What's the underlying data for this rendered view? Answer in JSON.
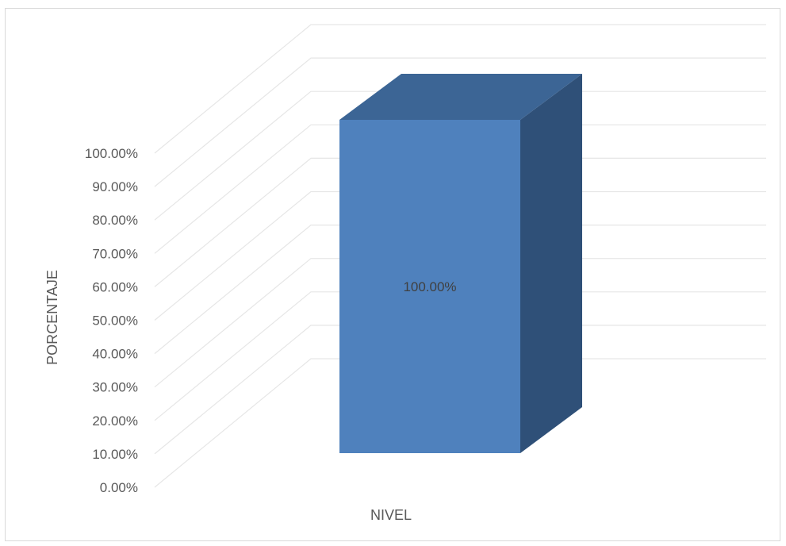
{
  "chart_data": {
    "type": "bar",
    "title": "",
    "xlabel": "NIVEL",
    "ylabel": "PORCENTAJE",
    "categories": [
      ""
    ],
    "series": [
      {
        "values": [
          100.0
        ]
      }
    ],
    "ylim": [
      0,
      100
    ],
    "y_ticks": [
      "0.00%",
      "10.00%",
      "20.00%",
      "30.00%",
      "40.00%",
      "50.00%",
      "60.00%",
      "70.00%",
      "80.00%",
      "90.00%",
      "100.00%"
    ],
    "data_labels": [
      "100.00%"
    ],
    "grid": true,
    "style": "3d-column",
    "colors": {
      "bar_front": "#4f81bd",
      "bar_top": "#3c6595",
      "bar_side": "#2f5078",
      "grid": "#e6e6e6"
    }
  }
}
